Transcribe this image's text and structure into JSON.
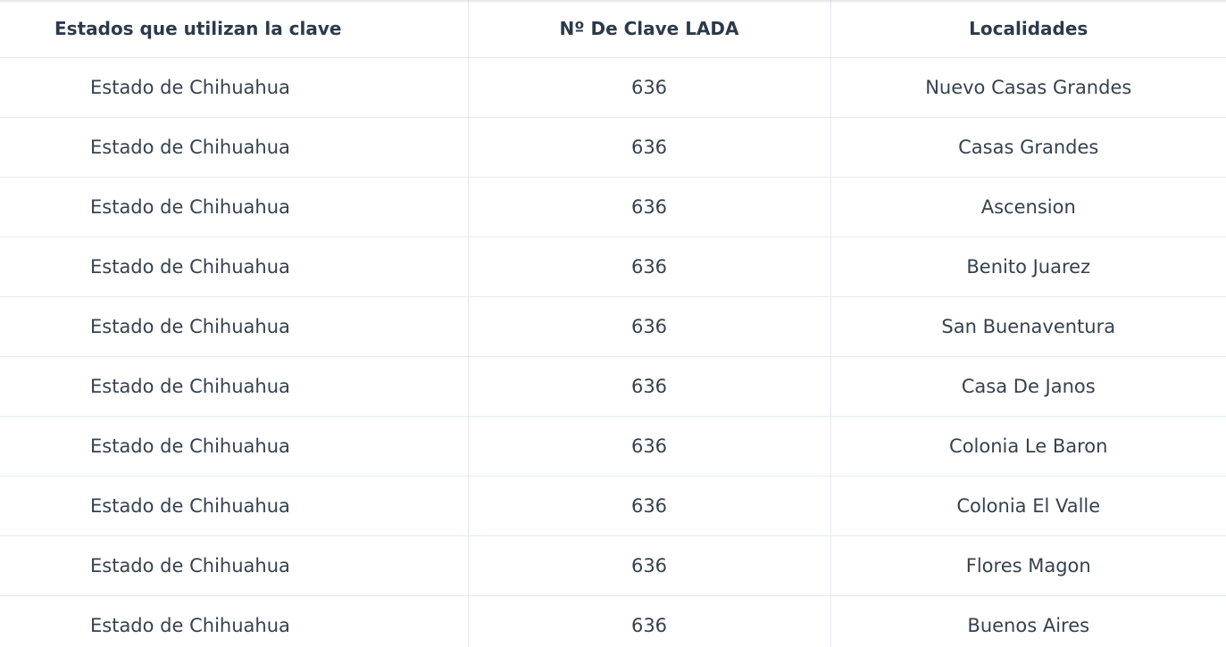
{
  "table": {
    "headers": [
      "Estados que utilizan la clave",
      "Nº De Clave LADA",
      "Localidades"
    ],
    "rows": [
      [
        "Estado de Chihuahua",
        "636",
        "Nuevo Casas Grandes"
      ],
      [
        "Estado de Chihuahua",
        "636",
        "Casas Grandes"
      ],
      [
        "Estado de Chihuahua",
        "636",
        "Ascension"
      ],
      [
        "Estado de Chihuahua",
        "636",
        "Benito Juarez"
      ],
      [
        "Estado de Chihuahua",
        "636",
        "San Buenaventura"
      ],
      [
        "Estado de Chihuahua",
        "636",
        "Casa De Janos"
      ],
      [
        "Estado de Chihuahua",
        "636",
        "Colonia Le Baron"
      ],
      [
        "Estado de Chihuahua",
        "636",
        "Colonia El Valle"
      ],
      [
        "Estado de Chihuahua",
        "636",
        "Flores Magon"
      ],
      [
        "Estado de Chihuahua",
        "636",
        "Buenos Aires"
      ]
    ]
  }
}
